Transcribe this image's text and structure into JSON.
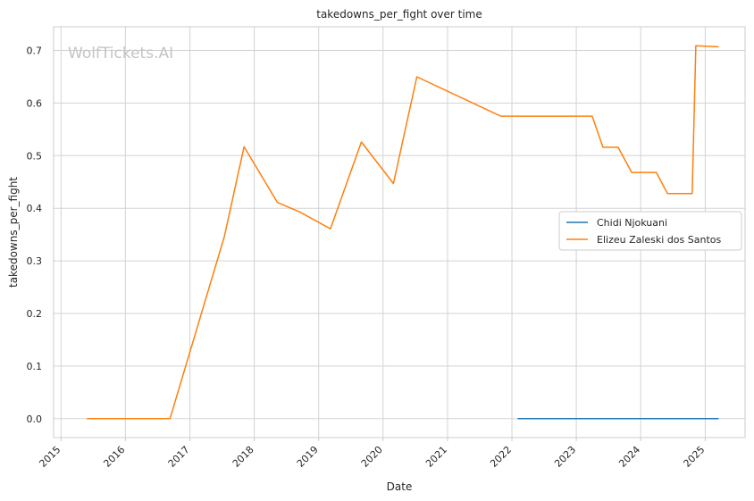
{
  "chart_data": {
    "type": "line",
    "title": "takedowns_per_fight over time",
    "xlabel": "Date",
    "ylabel": "takedowns_per_fight",
    "watermark": "WolfTickets.AI",
    "grid": true,
    "legend_position": "center-right",
    "xlim": [
      "2014-11-20",
      "2025-08-15"
    ],
    "ylim": [
      -0.036,
      0.745
    ],
    "x_ticks": [
      "2015",
      "2016",
      "2017",
      "2018",
      "2019",
      "2020",
      "2021",
      "2022",
      "2023",
      "2024",
      "2025"
    ],
    "y_ticks": [
      0.0,
      0.1,
      0.2,
      0.3,
      0.4,
      0.5,
      0.6,
      0.7
    ],
    "y_tick_labels": [
      "0.0",
      "0.1",
      "0.2",
      "0.3",
      "0.4",
      "0.5",
      "0.6",
      "0.7"
    ],
    "series": [
      {
        "name": "Chidi Njokuani",
        "color": "#1f77b4",
        "points": [
          {
            "x": "2022-02-05",
            "y": 0.0
          },
          {
            "x": "2025-03-15",
            "y": 0.0
          }
        ]
      },
      {
        "name": "Elizeu Zaleski dos Santos",
        "color": "#ff7f0e",
        "points": [
          {
            "x": "2015-05-30",
            "y": 0.0
          },
          {
            "x": "2016-09-10",
            "y": 0.0
          },
          {
            "x": "2017-07-15",
            "y": 0.346
          },
          {
            "x": "2017-11-04",
            "y": 0.517
          },
          {
            "x": "2018-05-12",
            "y": 0.411
          },
          {
            "x": "2018-09-15",
            "y": 0.393
          },
          {
            "x": "2019-03-09",
            "y": 0.361
          },
          {
            "x": "2019-08-31",
            "y": 0.526
          },
          {
            "x": "2020-02-29",
            "y": 0.447
          },
          {
            "x": "2020-07-11",
            "y": 0.65
          },
          {
            "x": "2021-10-30",
            "y": 0.575
          },
          {
            "x": "2023-04-01",
            "y": 0.575
          },
          {
            "x": "2023-06-01",
            "y": 0.516
          },
          {
            "x": "2023-08-26",
            "y": 0.516
          },
          {
            "x": "2023-11-11",
            "y": 0.468
          },
          {
            "x": "2024-03-30",
            "y": 0.468
          },
          {
            "x": "2024-06-01",
            "y": 0.428
          },
          {
            "x": "2024-10-19",
            "y": 0.428
          },
          {
            "x": "2024-11-09",
            "y": 0.709
          },
          {
            "x": "2025-03-15",
            "y": 0.707
          }
        ]
      }
    ]
  }
}
